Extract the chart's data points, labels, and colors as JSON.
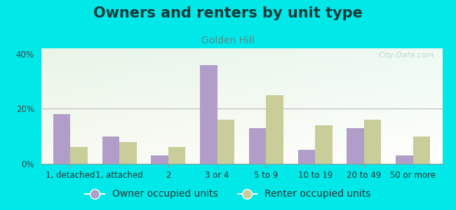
{
  "title": "Owners and renters by unit type",
  "subtitle": "Golden Hill",
  "categories": [
    "1, detached",
    "1, attached",
    "2",
    "3 or 4",
    "5 to 9",
    "10 to 19",
    "20 to 49",
    "50 or more"
  ],
  "owner_values": [
    18,
    10,
    3,
    36,
    13,
    5,
    13,
    3
  ],
  "renter_values": [
    6,
    8,
    6,
    16,
    25,
    14,
    16,
    10
  ],
  "owner_color": "#b09ec9",
  "renter_color": "#c8cd9a",
  "ylim": [
    0,
    42
  ],
  "yticks": [
    0,
    20,
    40
  ],
  "ytick_labels": [
    "0%",
    "20%",
    "40%"
  ],
  "background_color": "#00e8e8",
  "legend_owner": "Owner occupied units",
  "legend_renter": "Renter occupied units",
  "watermark": "City-Data.com",
  "bar_width": 0.35,
  "title_fontsize": 15,
  "subtitle_fontsize": 10,
  "tick_fontsize": 8.5,
  "legend_fontsize": 10,
  "title_color": "#1a3a3a",
  "subtitle_color": "#5a8a8a",
  "watermark_color": "#aacccc"
}
